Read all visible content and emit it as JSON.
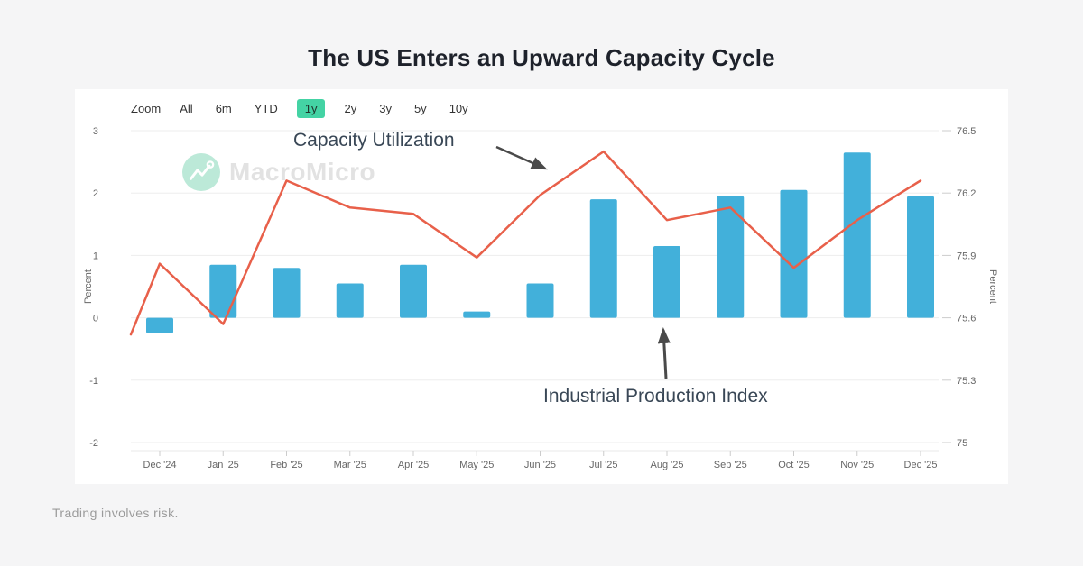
{
  "title": "The US Enters an Upward Capacity Cycle",
  "toolbar": {
    "zoom_label": "Zoom",
    "selected_color": "#44d3a4",
    "buttons": [
      {
        "label": "All",
        "selected": false
      },
      {
        "label": "6m",
        "selected": false
      },
      {
        "label": "YTD",
        "selected": false
      },
      {
        "label": "1y",
        "selected": true
      },
      {
        "label": "2y",
        "selected": false
      },
      {
        "label": "3y",
        "selected": false
      },
      {
        "label": "5y",
        "selected": false
      },
      {
        "label": "10y",
        "selected": false
      }
    ]
  },
  "watermark": {
    "text": "MacroMicro",
    "logo_color": "#bce9d8"
  },
  "annotations": {
    "capacity": "Capacity Utilization",
    "industrial": "Industrial Production Index"
  },
  "footer": {
    "disclaimer": "Trading involves risk."
  },
  "colors": {
    "bar": "#42b0da",
    "line": "#e8604a",
    "grid": "#ededed",
    "axis_text": "#666666",
    "tick_mark": "#cccccc",
    "axis_line": "#e8e8e8",
    "annotation_text": "#394756",
    "arrow": "#4a4a4a",
    "selected_range": "#44d3a4"
  },
  "chart_data": {
    "type": "combo: bar + line, dual y-axes",
    "categories": [
      "Dec '24",
      "Jan '25",
      "Feb '25",
      "Mar '25",
      "Apr '25",
      "May '25",
      "Jun '25",
      "Jul '25",
      "Aug '25",
      "Sep '25",
      "Oct '25",
      "Nov '25",
      "Dec '25"
    ],
    "series": [
      {
        "name": "Industrial Production Index",
        "type": "bar",
        "axis": "left",
        "values": [
          -0.25,
          0.85,
          0.8,
          0.55,
          0.85,
          0.1,
          0.55,
          1.9,
          1.15,
          1.95,
          2.05,
          2.65,
          1.95
        ]
      },
      {
        "name": "Capacity Utilization",
        "type": "line",
        "axis": "right",
        "edge_start": 75.52,
        "values": [
          75.86,
          75.57,
          76.26,
          76.13,
          76.1,
          75.89,
          76.19,
          76.4,
          76.07,
          76.13,
          75.84,
          76.07,
          76.26
        ]
      }
    ],
    "left_axis": {
      "label": "Percent",
      "min": -2,
      "max": 3,
      "ticks": [
        3,
        2,
        1,
        0,
        -1,
        -2
      ]
    },
    "right_axis": {
      "label": "Percent",
      "min": 75,
      "max": 76.5,
      "ticks": [
        "76.5",
        "76.2",
        "75.9",
        "75.6",
        "75.3",
        "75"
      ]
    },
    "grid": true,
    "legend": "none (series labeled by on-chart arrow annotations)"
  }
}
